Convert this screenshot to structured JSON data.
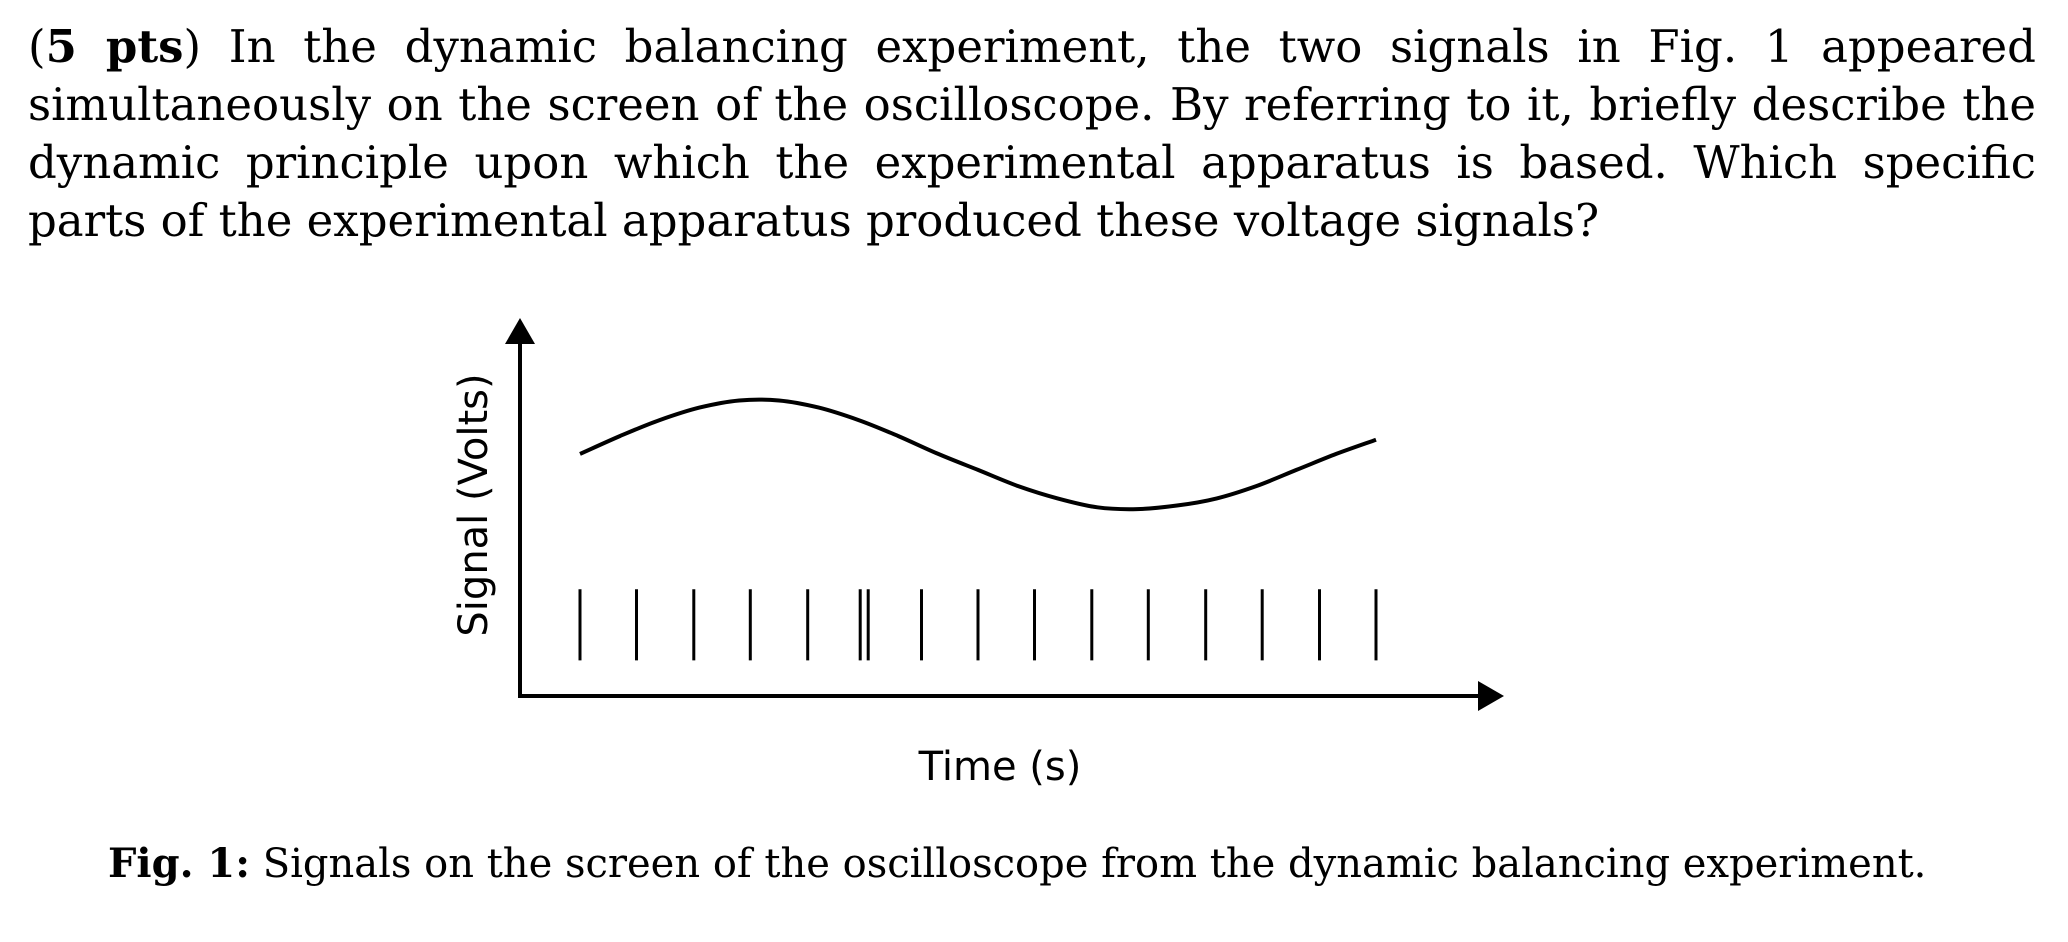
{
  "question": {
    "points_label": "5 pts",
    "open_paren": "(",
    "close_paren": ")",
    "text": " In the dynamic balancing experiment, the two signals in Fig. 1 appeared simultaneously on the screen of the oscilloscope. By referring to it, briefly describe the dynamic principle upon which the experimental apparatus is based. Which specific parts of the experimental apparatus produced these voltage signals?"
  },
  "figure": {
    "caption_label": "Fig. 1:",
    "caption_text": " Signals on the screen of the oscilloscope from the dynamic balancing experiment."
  },
  "chart_data": {
    "type": "line",
    "title": "",
    "xlabel": "Time (s)",
    "ylabel": "Signal (Volts)",
    "grid": false,
    "legend": "none",
    "xlim": [
      0,
      1
    ],
    "ylim": [
      0,
      1
    ],
    "series": [
      {
        "kind": "sine",
        "x": [
          0.0,
          0.05,
          0.1,
          0.15,
          0.2,
          0.25,
          0.3,
          0.35,
          0.4,
          0.45,
          0.5,
          0.55,
          0.6,
          0.65,
          0.7,
          0.75,
          0.8,
          0.85,
          0.9,
          0.95,
          1.0
        ],
        "values": [
          0.68,
          0.73,
          0.775,
          0.81,
          0.83,
          0.83,
          0.81,
          0.775,
          0.73,
          0.68,
          0.635,
          0.59,
          0.555,
          0.53,
          0.525,
          0.535,
          0.555,
          0.59,
          0.635,
          0.68,
          0.72
        ]
      },
      {
        "kind": "pulses",
        "x": [
          0.0,
          0.071,
          0.143,
          0.214,
          0.286,
          0.352,
          0.362,
          0.429,
          0.5,
          0.571,
          0.643,
          0.714,
          0.786,
          0.857,
          0.929,
          1.0
        ],
        "values": [
          0.3,
          0.3,
          0.3,
          0.3,
          0.3,
          0.3,
          0.3,
          0.3,
          0.3,
          0.3,
          0.3,
          0.3,
          0.3,
          0.3,
          0.3,
          0.3
        ],
        "baseline": 0.1
      }
    ]
  }
}
